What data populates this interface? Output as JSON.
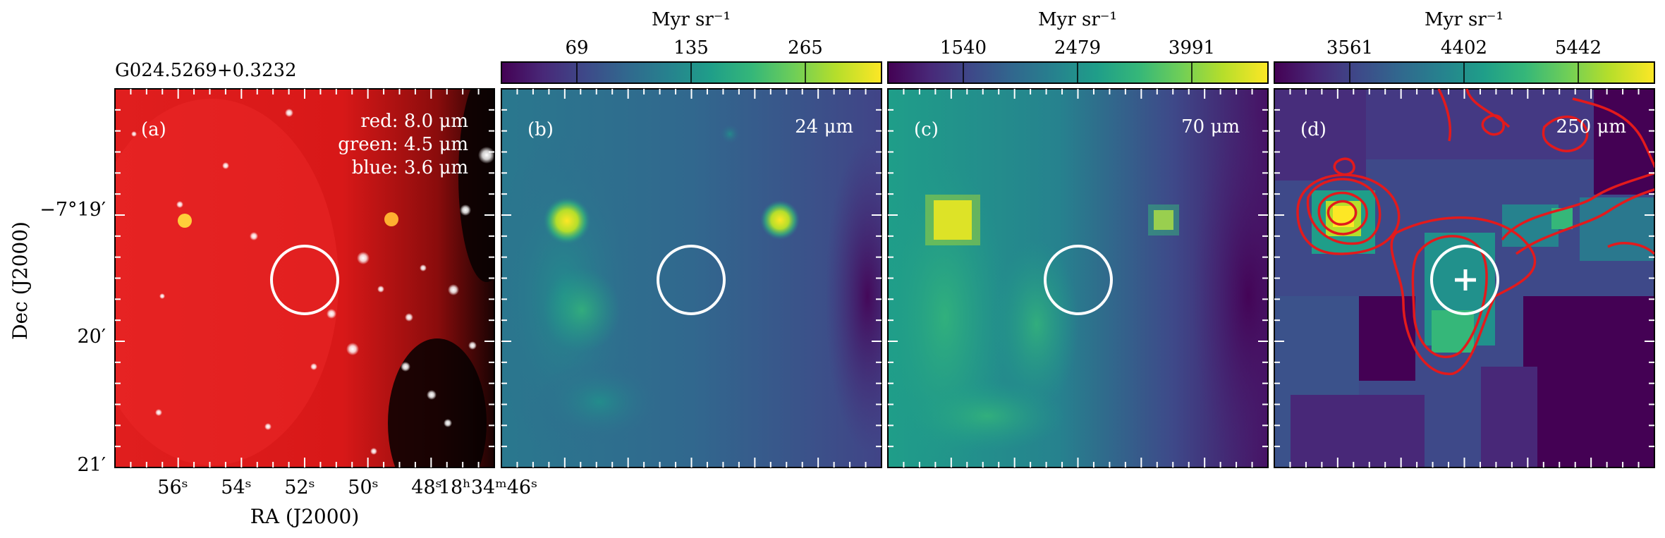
{
  "figure": {
    "source_title": "G024.5269+0.3232",
    "y_axis_label": "Dec (J2000)",
    "x_axis_label": "RA (J2000)",
    "dec_ticks": [
      "−7°19′",
      "20′",
      "21′"
    ],
    "ra_ticks": [
      "56ˢ",
      "54ˢ",
      "52ˢ",
      "50ˢ",
      "48ˢ",
      "18ʰ34ᵐ46ˢ"
    ]
  },
  "panels": [
    {
      "id": "a",
      "label": "(a)",
      "legend": [
        "red: 8.0 μm",
        "green: 4.5 μm",
        "blue: 3.6 μm"
      ],
      "colors": {
        "dominant": "#d9191a"
      }
    },
    {
      "id": "b",
      "label": "(b)",
      "band": "24 μm",
      "colorbar": {
        "unit": "Myr sr⁻¹",
        "ticks": [
          "69",
          "135",
          "265"
        ]
      }
    },
    {
      "id": "c",
      "label": "(c)",
      "band": "70 μm",
      "colorbar": {
        "unit": "Myr sr⁻¹",
        "ticks": [
          "1540",
          "2479",
          "3991"
        ]
      }
    },
    {
      "id": "d",
      "label": "(d)",
      "band": "250 μm",
      "colorbar": {
        "unit": "Myr sr⁻¹",
        "ticks": [
          "3561",
          "4402",
          "5442"
        ]
      },
      "colors": {
        "contour": "#e31a1c"
      }
    }
  ],
  "colors": {
    "viridis": [
      "#440154",
      "#482878",
      "#3e4989",
      "#31688e",
      "#26828e",
      "#1f9e89",
      "#35b779",
      "#6ece58",
      "#b5de2b",
      "#fde725"
    ]
  }
}
